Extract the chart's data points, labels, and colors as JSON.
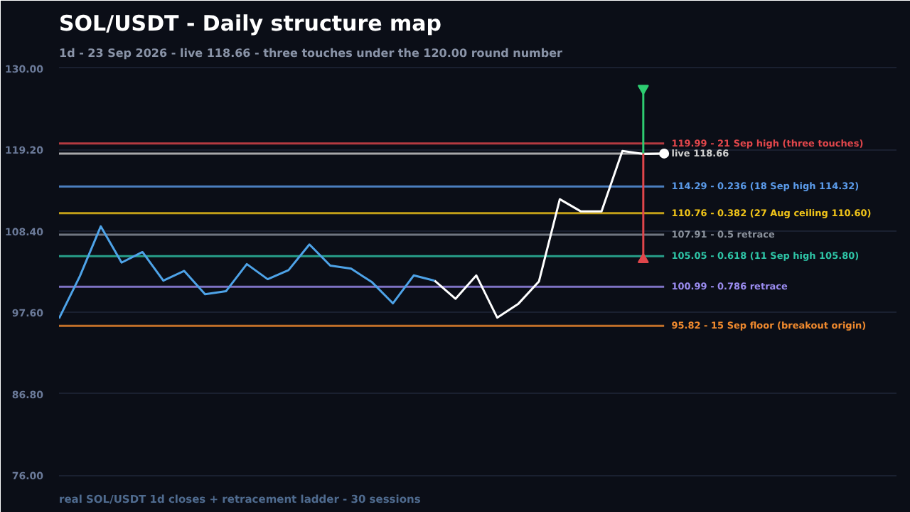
{
  "chart_data": {
    "type": "line",
    "title": "SOL/USDT - Daily structure map",
    "subtitle": "1d - 23 Sep 2026 - live 118.66 - three touches under the 120.00 round number",
    "categories": [
      null,
      null,
      null,
      null,
      null,
      null,
      null,
      null,
      null,
      null,
      null,
      null,
      null,
      null,
      null,
      null,
      null,
      null,
      null,
      null,
      null,
      null,
      null,
      null,
      null,
      null,
      null,
      null,
      null,
      null
    ],
    "series": [
      {
        "color": "#4ea3e8",
        "values": [
          96.8,
          102.4,
          109.0,
          104.2,
          105.6,
          101.8,
          103.1,
          100.0,
          100.4,
          104.0,
          102.0,
          103.2,
          106.6,
          103.8,
          103.4,
          101.6,
          98.8,
          102.5,
          101.8,
          null,
          null,
          null,
          null,
          null,
          null,
          null,
          null,
          null,
          null,
          null
        ]
      },
      {
        "color": "#ffffff",
        "values": [
          null,
          null,
          null,
          null,
          null,
          null,
          null,
          null,
          null,
          null,
          null,
          null,
          null,
          null,
          null,
          null,
          null,
          null,
          101.8,
          99.4,
          102.5,
          96.9,
          98.7,
          101.7,
          112.6,
          111.0,
          111.0,
          119.0,
          118.6,
          118.66
        ]
      },
      {
        "type": "scatter",
        "marker": "circle",
        "color": "#ffffff",
        "values": [
          null,
          null,
          null,
          null,
          null,
          null,
          null,
          null,
          null,
          null,
          null,
          null,
          null,
          null,
          null,
          null,
          null,
          null,
          null,
          null,
          null,
          null,
          null,
          null,
          null,
          null,
          null,
          null,
          null,
          118.66
        ]
      },
      {
        "type": "scatter",
        "marker": "triangle",
        "color": "#2ecc71",
        "values": [
          null,
          null,
          null,
          null,
          null,
          null,
          null,
          null,
          null,
          null,
          null,
          null,
          null,
          null,
          null,
          null,
          null,
          null,
          null,
          null,
          null,
          null,
          null,
          null,
          null,
          null,
          null,
          null,
          127.3,
          null
        ],
        "errors": [
          null,
          null,
          null,
          null,
          null,
          null,
          null,
          null,
          null,
          null,
          null,
          null,
          null,
          null,
          null,
          null,
          null,
          null,
          null,
          null,
          null,
          null,
          null,
          null,
          null,
          null,
          null,
          null,
          [
            118.66,
            127.3
          ],
          null
        ]
      },
      {
        "type": "scatter",
        "marker": "triangle",
        "color": "#e0464b",
        "values": [
          null,
          null,
          null,
          null,
          null,
          null,
          null,
          null,
          null,
          null,
          null,
          null,
          null,
          null,
          null,
          null,
          null,
          null,
          null,
          null,
          null,
          null,
          null,
          null,
          null,
          null,
          null,
          null,
          104.6,
          null
        ],
        "errors": [
          null,
          null,
          null,
          null,
          null,
          null,
          null,
          null,
          null,
          null,
          null,
          null,
          null,
          null,
          null,
          null,
          null,
          null,
          null,
          null,
          null,
          null,
          null,
          null,
          null,
          null,
          null,
          null,
          [
            104.6,
            118.66
          ],
          null
        ]
      }
    ],
    "ref_lines": [
      {
        "axis": "y",
        "value": 119.99,
        "label": "119.99 - 21 Sep high (three touches)",
        "color": "#e0464b"
      },
      {
        "axis": "y",
        "value": 118.66,
        "label": "live 118.66",
        "color": "#d0d0d0"
      },
      {
        "axis": "y",
        "value": 114.29,
        "label": "114.29 - 0.236 (18 Sep high 114.32)",
        "color": "#5b9bea"
      },
      {
        "axis": "y",
        "value": 110.76,
        "label": "110.76 - 0.382 (27 Aug ceiling 110.60)",
        "color": "#f0c419"
      },
      {
        "axis": "y",
        "value": 107.91,
        "label": "107.91 - 0.5 retrace",
        "color": "#8a919c"
      },
      {
        "axis": "y",
        "value": 105.05,
        "label": "105.05 - 0.618 (11 Sep high 105.80)",
        "color": "#2ec4a6"
      },
      {
        "axis": "y",
        "value": 100.99,
        "label": "100.99 - 0.786 retrace",
        "color": "#9b8cf0"
      },
      {
        "axis": "y",
        "value": 95.82,
        "label": "95.82 - 15 Sep floor (breakout origin)",
        "color": "#f08a2e"
      }
    ],
    "ylim": [
      75,
      131
    ],
    "yticks": [
      {
        "value": 76,
        "label": "76.00"
      },
      {
        "value": 86.8,
        "label": "86.80"
      },
      {
        "value": 97.6,
        "label": "97.60"
      },
      {
        "value": 108.4,
        "label": "108.40"
      },
      {
        "value": 119.2,
        "label": "119.20"
      },
      {
        "value": 130,
        "label": "130.00"
      }
    ],
    "grid": "y",
    "tick_labels": "y",
    "annotations": [
      "real SOL/USDT 1d closes + retracement ladder - 30 sessions"
    ]
  }
}
